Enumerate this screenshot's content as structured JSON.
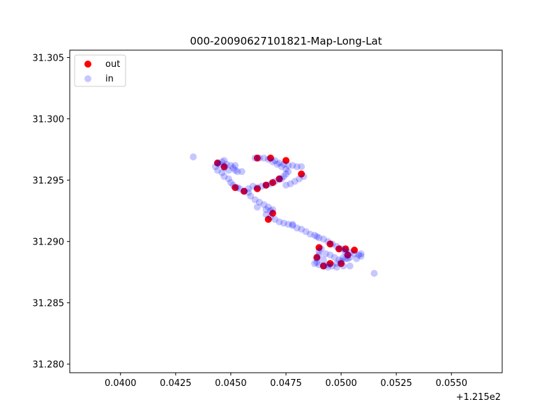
{
  "chart_data": {
    "type": "scatter",
    "title": "000-20090627101821-Map-Long-Lat",
    "xlabel": "",
    "ylabel": "",
    "x_offset_label": "+1.215e2",
    "xlim": [
      0.0377,
      0.0573
    ],
    "ylim": [
      31.2793,
      31.3056
    ],
    "x_ticks": [
      "0.0400",
      "0.0425",
      "0.0450",
      "0.0475",
      "0.0500",
      "0.0525",
      "0.0550"
    ],
    "y_ticks": [
      "31.280",
      "31.285",
      "31.290",
      "31.295",
      "31.300",
      "31.305"
    ],
    "legend_position": "top-left",
    "grid": false,
    "series": [
      {
        "name": "out",
        "color": "#ff0000",
        "alpha": 1.0,
        "points": [
          [
            0.0444,
            31.2964
          ],
          [
            0.0447,
            31.2961
          ],
          [
            0.0452,
            31.2944
          ],
          [
            0.0456,
            31.2941
          ],
          [
            0.0462,
            31.2943
          ],
          [
            0.0466,
            31.2946
          ],
          [
            0.0469,
            31.2948
          ],
          [
            0.0472,
            31.2951
          ],
          [
            0.0475,
            31.2966
          ],
          [
            0.0468,
            31.2968
          ],
          [
            0.0462,
            31.2968
          ],
          [
            0.0482,
            31.2955
          ],
          [
            0.0469,
            31.2923
          ],
          [
            0.0467,
            31.2918
          ],
          [
            0.049,
            31.2895
          ],
          [
            0.0495,
            31.2898
          ],
          [
            0.0499,
            31.2894
          ],
          [
            0.0502,
            31.2894
          ],
          [
            0.0506,
            31.2893
          ],
          [
            0.0503,
            31.2889
          ],
          [
            0.0495,
            31.2882
          ],
          [
            0.0492,
            31.288
          ],
          [
            0.0489,
            31.2887
          ],
          [
            0.05,
            31.2882
          ]
        ]
      },
      {
        "name": "in",
        "color": "#0000ff",
        "alpha": 0.22,
        "points": [
          [
            0.0433,
            31.2969
          ],
          [
            0.0443,
            31.2961
          ],
          [
            0.0444,
            31.2958
          ],
          [
            0.0445,
            31.2963
          ],
          [
            0.0446,
            31.2965
          ],
          [
            0.0447,
            31.296
          ],
          [
            0.0448,
            31.2963
          ],
          [
            0.0449,
            31.2958
          ],
          [
            0.045,
            31.2962
          ],
          [
            0.0451,
            31.296
          ],
          [
            0.0446,
            31.2956
          ],
          [
            0.0447,
            31.2953
          ],
          [
            0.0449,
            31.2951
          ],
          [
            0.045,
            31.2948
          ],
          [
            0.0451,
            31.2946
          ],
          [
            0.0453,
            31.2944
          ],
          [
            0.0454,
            31.2943
          ],
          [
            0.0456,
            31.2941
          ],
          [
            0.0458,
            31.294
          ],
          [
            0.0459,
            31.2937
          ],
          [
            0.0461,
            31.2934
          ],
          [
            0.0463,
            31.2932
          ],
          [
            0.0465,
            31.293
          ],
          [
            0.0467,
            31.2928
          ],
          [
            0.0468,
            31.2925
          ],
          [
            0.0466,
            31.2922
          ],
          [
            0.0468,
            31.292
          ],
          [
            0.047,
            31.2918
          ],
          [
            0.0472,
            31.2916
          ],
          [
            0.0474,
            31.2915
          ],
          [
            0.0476,
            31.2914
          ],
          [
            0.0478,
            31.2913
          ],
          [
            0.048,
            31.2911
          ],
          [
            0.0482,
            31.291
          ],
          [
            0.0484,
            31.2908
          ],
          [
            0.0486,
            31.2906
          ],
          [
            0.0488,
            31.2905
          ],
          [
            0.049,
            31.2903
          ],
          [
            0.0492,
            31.2902
          ],
          [
            0.0494,
            31.29
          ],
          [
            0.0496,
            31.2898
          ],
          [
            0.0498,
            31.2896
          ],
          [
            0.05,
            31.2894
          ],
          [
            0.0502,
            31.2893
          ],
          [
            0.0504,
            31.2891
          ],
          [
            0.0506,
            31.289
          ],
          [
            0.0508,
            31.2889
          ],
          [
            0.0509,
            31.2888
          ],
          [
            0.0507,
            31.2886
          ],
          [
            0.0504,
            31.2887
          ],
          [
            0.0502,
            31.2886
          ],
          [
            0.05,
            31.2884
          ],
          [
            0.0498,
            31.2882
          ],
          [
            0.0496,
            31.288
          ],
          [
            0.0494,
            31.2881
          ],
          [
            0.0492,
            31.288
          ],
          [
            0.049,
            31.2881
          ],
          [
            0.0489,
            31.2883
          ],
          [
            0.0489,
            31.2886
          ],
          [
            0.049,
            31.2889
          ],
          [
            0.049,
            31.2892
          ],
          [
            0.0491,
            31.2894
          ],
          [
            0.0493,
            31.289
          ],
          [
            0.0495,
            31.2889
          ],
          [
            0.0497,
            31.2887
          ],
          [
            0.0499,
            31.2885
          ],
          [
            0.0501,
            31.2887
          ],
          [
            0.0503,
            31.2886
          ],
          [
            0.0504,
            31.288
          ],
          [
            0.0498,
            31.2879
          ],
          [
            0.0494,
            31.2879
          ],
          [
            0.0488,
            31.2882
          ],
          [
            0.0515,
            31.2874
          ],
          [
            0.0453,
            31.2957
          ],
          [
            0.0455,
            31.2957
          ],
          [
            0.0458,
            31.2943
          ],
          [
            0.046,
            31.2945
          ],
          [
            0.0462,
            31.2944
          ],
          [
            0.0464,
            31.2945
          ],
          [
            0.0466,
            31.2946
          ],
          [
            0.0468,
            31.2947
          ],
          [
            0.047,
            31.2949
          ],
          [
            0.0472,
            31.2951
          ],
          [
            0.0474,
            31.2953
          ],
          [
            0.0475,
            31.2955
          ],
          [
            0.0476,
            31.2957
          ],
          [
            0.0475,
            31.2959
          ],
          [
            0.0473,
            31.2961
          ],
          [
            0.0471,
            31.2963
          ],
          [
            0.0469,
            31.2965
          ],
          [
            0.0467,
            31.2967
          ],
          [
            0.0465,
            31.2968
          ],
          [
            0.0463,
            31.2968
          ],
          [
            0.0461,
            31.2968
          ],
          [
            0.047,
            31.2966
          ],
          [
            0.0472,
            31.2964
          ],
          [
            0.0474,
            31.2963
          ],
          [
            0.0476,
            31.2962
          ],
          [
            0.0478,
            31.2962
          ],
          [
            0.048,
            31.2961
          ],
          [
            0.0482,
            31.2961
          ],
          [
            0.0483,
            31.2953
          ],
          [
            0.0481,
            31.2951
          ],
          [
            0.0479,
            31.2949
          ],
          [
            0.0477,
            31.2947
          ],
          [
            0.0475,
            31.2946
          ],
          [
            0.0473,
            31.2951
          ],
          [
            0.0447,
            31.2966
          ],
          [
            0.0452,
            31.2962
          ],
          [
            0.0452,
            31.2958
          ],
          [
            0.0444,
            31.2964
          ],
          [
            0.0462,
            31.2928
          ],
          [
            0.0466,
            31.2926
          ],
          [
            0.0469,
            31.2926
          ],
          [
            0.0478,
            31.2914
          ],
          [
            0.0489,
            31.2904
          ],
          [
            0.0502,
            31.2891
          ],
          [
            0.0509,
            31.289
          ],
          [
            0.0501,
            31.288
          ],
          [
            0.0492,
            31.2885
          ]
        ]
      }
    ]
  }
}
